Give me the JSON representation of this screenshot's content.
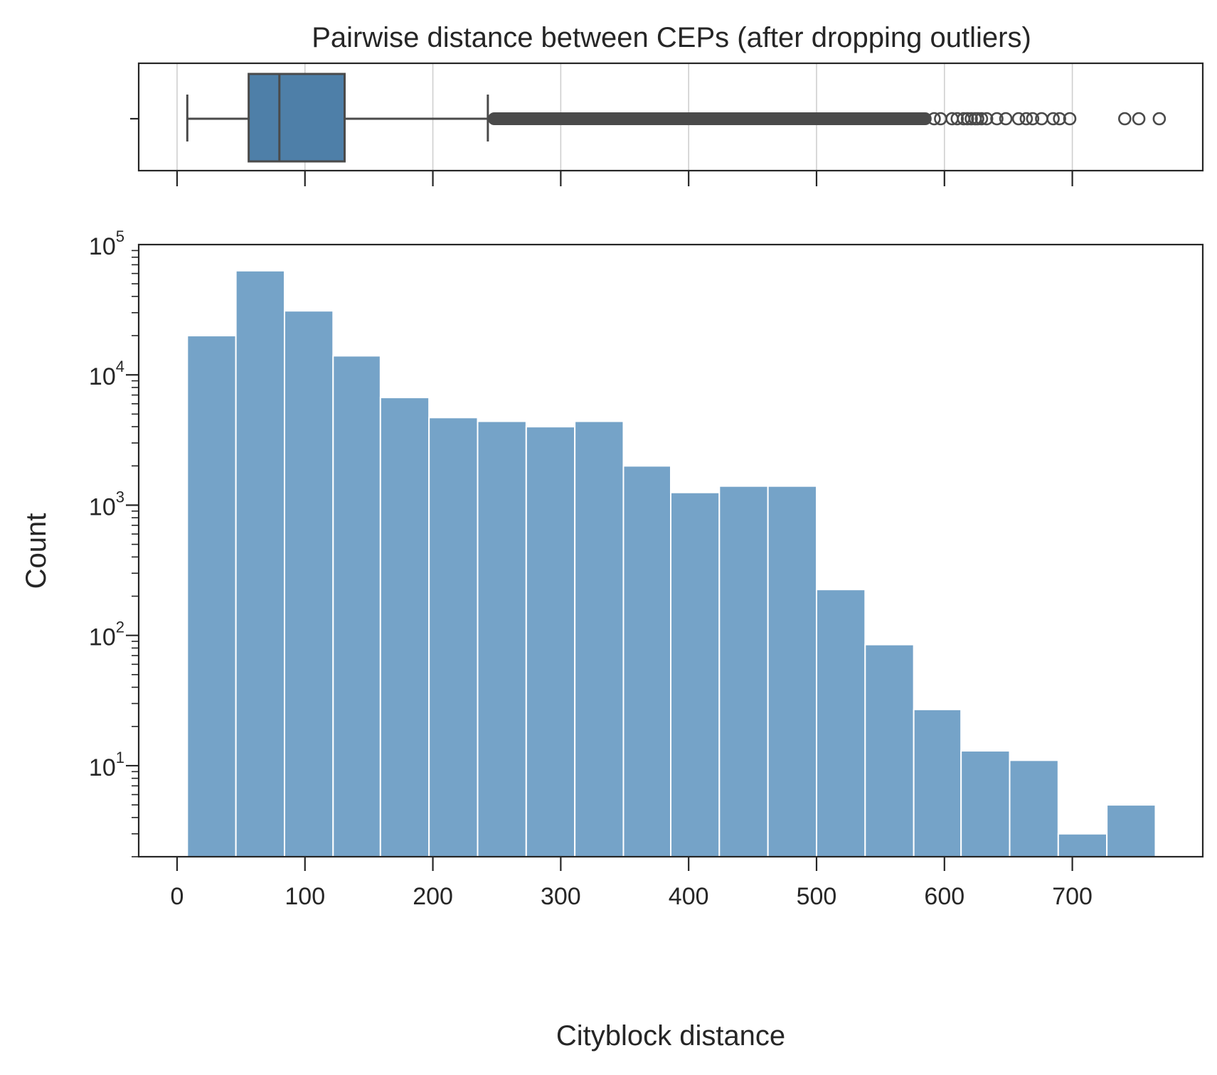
{
  "chart_data": [
    {
      "type": "box",
      "title": "Pairwise distance between CEPs (after dropping outliers)",
      "xlim": [
        -30,
        802
      ],
      "grid": "x",
      "orientation": "horizontal",
      "box_color": "#4e7fa8",
      "line_color": "#4a4a4a",
      "stats": {
        "whisker_low": 8,
        "q1": 56,
        "median": 80,
        "q3": 131,
        "whisker_high": 243
      },
      "outlier_band": [
        243,
        590
      ],
      "outliers": [
        592,
        597,
        606,
        610,
        615,
        618,
        621,
        624,
        626,
        629,
        633,
        641,
        648,
        658,
        664,
        669,
        676,
        685,
        690,
        698,
        741,
        752,
        768
      ]
    },
    {
      "type": "bar",
      "subtype": "histogram",
      "xlabel": "Cityblock distance",
      "ylabel": "Count",
      "xlim": [
        -30,
        802
      ],
      "ylim": [
        2,
        100000
      ],
      "yscale": "log",
      "bar_color": "#75a3c8",
      "x_ticks": [
        0,
        100,
        200,
        300,
        400,
        500,
        600,
        700
      ],
      "y_ticks": [
        {
          "base": "10",
          "exp": "1",
          "value": 10
        },
        {
          "base": "10",
          "exp": "2",
          "value": 100
        },
        {
          "base": "10",
          "exp": "3",
          "value": 1000
        },
        {
          "base": "10",
          "exp": "4",
          "value": 10000
        },
        {
          "base": "10",
          "exp": "5",
          "value": 100000
        }
      ],
      "bin_edges": [
        8,
        46,
        84,
        122,
        159,
        197,
        235,
        273,
        311,
        349,
        386,
        424,
        462,
        500,
        538,
        576,
        613,
        651,
        689,
        727,
        765
      ],
      "values": [
        20000,
        63000,
        31000,
        14000,
        6700,
        4700,
        4400,
        4000,
        4400,
        2000,
        1250,
        1400,
        1400,
        225,
        85,
        27,
        13,
        11,
        3,
        5
      ]
    }
  ]
}
